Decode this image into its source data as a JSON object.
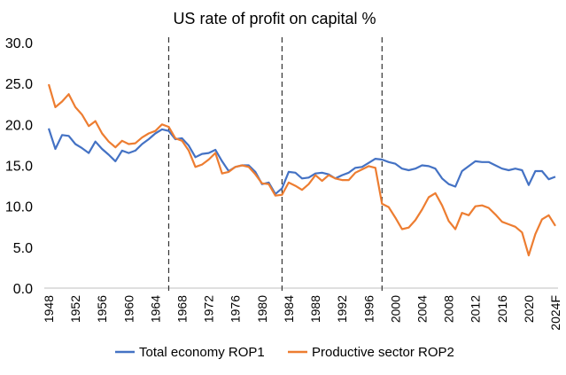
{
  "chart_data": {
    "type": "line",
    "title": "US rate of profit on capital  %",
    "xlabel": "",
    "ylabel": "",
    "ylim": [
      0,
      30
    ],
    "yticks": [
      "0.0",
      "5.0",
      "10.0",
      "15.0",
      "20.0",
      "25.0",
      "30.0"
    ],
    "xticks": [
      "1948",
      "1952",
      "1956",
      "1960",
      "1964",
      "1968",
      "1972",
      "1976",
      "1980",
      "1984",
      "1988",
      "1992",
      "1996",
      "2000",
      "2004",
      "2008",
      "2012",
      "2016",
      "2020",
      "2024F"
    ],
    "x": [
      1948,
      1949,
      1950,
      1951,
      1952,
      1953,
      1954,
      1955,
      1956,
      1957,
      1958,
      1959,
      1960,
      1961,
      1962,
      1963,
      1964,
      1965,
      1966,
      1967,
      1968,
      1969,
      1970,
      1971,
      1972,
      1973,
      1974,
      1975,
      1976,
      1977,
      1978,
      1979,
      1980,
      1981,
      1982,
      1983,
      1984,
      1985,
      1986,
      1987,
      1988,
      1989,
      1990,
      1991,
      1992,
      1993,
      1994,
      1995,
      1996,
      1997,
      1998,
      1999,
      2000,
      2001,
      2002,
      2003,
      2004,
      2005,
      2006,
      2007,
      2008,
      2009,
      2010,
      2011,
      2012,
      2013,
      2014,
      2015,
      2016,
      2017,
      2018,
      2019,
      2020,
      2021,
      2022,
      2023,
      2024
    ],
    "series": [
      {
        "name": "Total economy ROP1",
        "color": "#4472c4",
        "values": [
          19.5,
          17.0,
          18.7,
          18.6,
          17.6,
          17.1,
          16.5,
          17.9,
          17.0,
          16.3,
          15.5,
          16.8,
          16.5,
          16.8,
          17.6,
          18.2,
          18.9,
          19.4,
          19.2,
          18.2,
          18.3,
          17.4,
          16.0,
          16.4,
          16.5,
          16.9,
          15.5,
          14.3,
          14.8,
          15.0,
          15.0,
          14.2,
          12.7,
          12.9,
          11.5,
          12.2,
          14.2,
          14.1,
          13.4,
          13.5,
          14.0,
          14.1,
          13.9,
          13.4,
          13.8,
          14.1,
          14.7,
          14.8,
          15.3,
          15.8,
          15.7,
          15.4,
          15.2,
          14.6,
          14.4,
          14.6,
          15.0,
          14.9,
          14.6,
          13.4,
          12.7,
          12.4,
          14.3,
          14.9,
          15.5,
          15.4,
          15.4,
          15.0,
          14.6,
          14.4,
          14.6,
          14.4,
          12.6,
          14.3,
          14.3,
          13.3,
          13.6
        ]
      },
      {
        "name": "Productive sector ROP2",
        "color": "#ed7d31",
        "values": [
          24.9,
          22.1,
          22.8,
          23.7,
          22.1,
          21.2,
          19.8,
          20.4,
          18.9,
          17.9,
          17.2,
          18.0,
          17.6,
          17.7,
          18.4,
          18.9,
          19.2,
          20.0,
          19.7,
          18.3,
          18.0,
          16.8,
          14.8,
          15.1,
          15.7,
          16.5,
          14.0,
          14.2,
          14.8,
          15.0,
          14.8,
          13.9,
          12.8,
          12.7,
          11.3,
          11.4,
          12.9,
          12.5,
          12.0,
          12.7,
          13.8,
          13.1,
          13.8,
          13.4,
          13.2,
          13.2,
          14.1,
          14.5,
          14.9,
          14.7,
          10.3,
          9.9,
          8.6,
          7.2,
          7.4,
          8.3,
          9.6,
          11.1,
          11.6,
          10.1,
          8.2,
          7.2,
          9.2,
          8.9,
          10.0,
          10.1,
          9.8,
          9.0,
          8.1,
          7.8,
          7.5,
          6.8,
          4.0,
          6.6,
          8.4,
          8.9,
          7.6
        ]
      }
    ],
    "vlines": [
      1966,
      1983,
      1998
    ],
    "legend_position": "bottom",
    "grid": false
  }
}
